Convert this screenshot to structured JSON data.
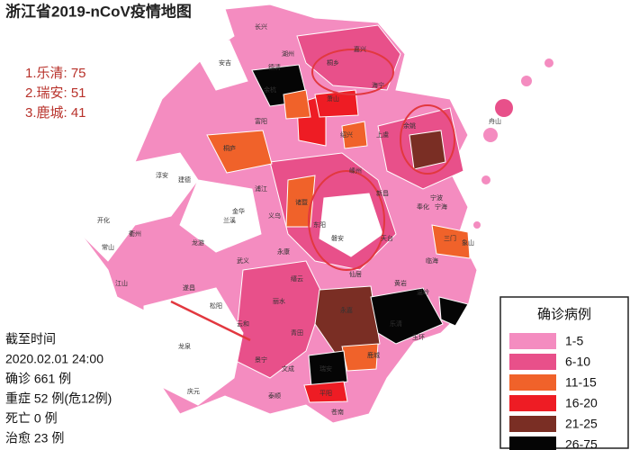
{
  "header": {
    "title": "浙江省2019-nCoV疫情地图"
  },
  "top_list": [
    "1.乐清: 75",
    "2.瑞安: 51",
    "3.鹿城: 41"
  ],
  "info": [
    "截至时间",
    "2020.02.01 24:00",
    "确诊 661 例",
    "重症 52 例(危12例)",
    "死亡 0 例",
    "治愈 23 例"
  ],
  "legend": {
    "title": "确诊病例",
    "items": [
      {
        "label": "1-5",
        "color": "#f48cc0"
      },
      {
        "label": "6-10",
        "color": "#e8508a"
      },
      {
        "label": "11-15",
        "color": "#f0622a"
      },
      {
        "label": "16-20",
        "color": "#ee1c24"
      },
      {
        "label": "21-25",
        "color": "#7a2e24"
      },
      {
        "label": "26-75",
        "color": "#050505"
      }
    ]
  },
  "map": {
    "labels": [
      "长兴",
      "安吉",
      "湖州",
      "嘉兴",
      "海宁",
      "桐乡",
      "德清",
      "余杭",
      "萧山",
      "富阳",
      "桐庐",
      "建德",
      "淳安",
      "开化",
      "常山",
      "衢州",
      "江山",
      "龙游",
      "兰溪",
      "浦江",
      "诸暨",
      "绍兴",
      "上虞",
      "余姚",
      "宁波",
      "舟山",
      "嵊州",
      "新昌",
      "奉化",
      "宁海",
      "象山",
      "三门",
      "天台",
      "临海",
      "仙居",
      "黄岩",
      "温岭",
      "玉环",
      "乐清",
      "永嘉",
      "鹿城",
      "瑞安",
      "平阳",
      "苍南",
      "泰顺",
      "文成",
      "青田",
      "丽水",
      "缙云",
      "云和",
      "景宁",
      "庆元",
      "龙泉",
      "遂昌",
      "松阳",
      "武义",
      "永康",
      "东阳",
      "义乌",
      "金华",
      "磐安"
    ]
  }
}
